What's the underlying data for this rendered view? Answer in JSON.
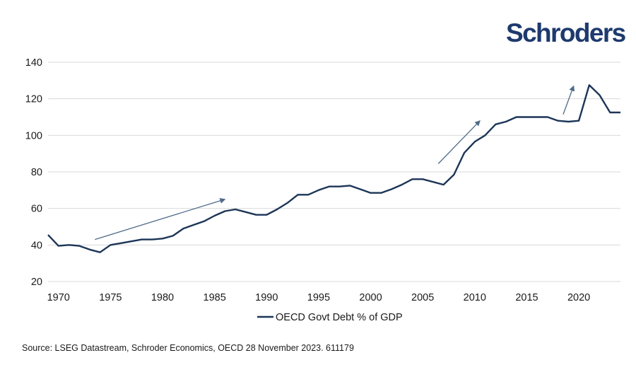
{
  "brand": {
    "logo_text": "Schroders",
    "color": "#1e3a6e"
  },
  "source": "Source: LSEG Datastream, Schroder Economics, OECD 28 November 2023. 611179",
  "chart_data": {
    "type": "line",
    "title": "",
    "xlabel": "",
    "ylabel": "",
    "xlim": [
      1969,
      2024
    ],
    "ylim": [
      20,
      140
    ],
    "y_ticks": [
      20,
      40,
      60,
      80,
      100,
      120,
      140
    ],
    "x_ticks": [
      1970,
      1975,
      1980,
      1985,
      1990,
      1995,
      2000,
      2005,
      2010,
      2015,
      2020
    ],
    "y_tick_labels": [
      "20",
      "40",
      "60",
      "80",
      "100",
      "120",
      "140"
    ],
    "x_tick_labels": [
      "1970",
      "1975",
      "1980",
      "1985",
      "1990",
      "1995",
      "2000",
      "2005",
      "2010",
      "2015",
      "2020"
    ],
    "grid": true,
    "legend_position": "bottom-center",
    "line_color": "#1c3557",
    "series": [
      {
        "name": "OECD Govt Debt % of GDP",
        "x": [
          1969,
          1970,
          1971,
          1972,
          1973,
          1974,
          1975,
          1976,
          1977,
          1978,
          1979,
          1980,
          1981,
          1982,
          1983,
          1984,
          1985,
          1986,
          1987,
          1988,
          1989,
          1990,
          1991,
          1992,
          1993,
          1994,
          1995,
          1996,
          1997,
          1998,
          1999,
          2000,
          2001,
          2002,
          2003,
          2004,
          2005,
          2006,
          2007,
          2008,
          2009,
          2010,
          2011,
          2012,
          2013,
          2014,
          2015,
          2016,
          2017,
          2018,
          2019,
          2020,
          2021,
          2022,
          2023,
          2024
        ],
        "values": [
          45.5,
          39.5,
          40,
          39.5,
          37.5,
          36,
          40,
          41,
          42,
          43,
          43,
          43.5,
          45,
          49,
          51,
          53,
          56,
          58.5,
          59.5,
          58,
          56.5,
          56.5,
          59.5,
          63,
          67.5,
          67.5,
          70,
          72,
          72,
          72.5,
          70.5,
          68.5,
          68.5,
          70.5,
          73,
          76,
          76,
          74.5,
          73,
          78.5,
          90.5,
          96.5,
          100,
          106,
          107.5,
          110,
          110,
          110,
          110,
          108,
          107.5,
          108,
          127.5,
          122,
          112.5,
          112.5
        ]
      }
    ],
    "annotations": [
      {
        "type": "arrow",
        "from": [
          1973.5,
          43
        ],
        "to": [
          1986,
          65
        ]
      },
      {
        "type": "arrow",
        "from": [
          2006.5,
          84.5
        ],
        "to": [
          2010.5,
          108
        ]
      },
      {
        "type": "arrow",
        "from": [
          2018.5,
          111.5
        ],
        "to": [
          2019.5,
          127
        ]
      }
    ]
  }
}
